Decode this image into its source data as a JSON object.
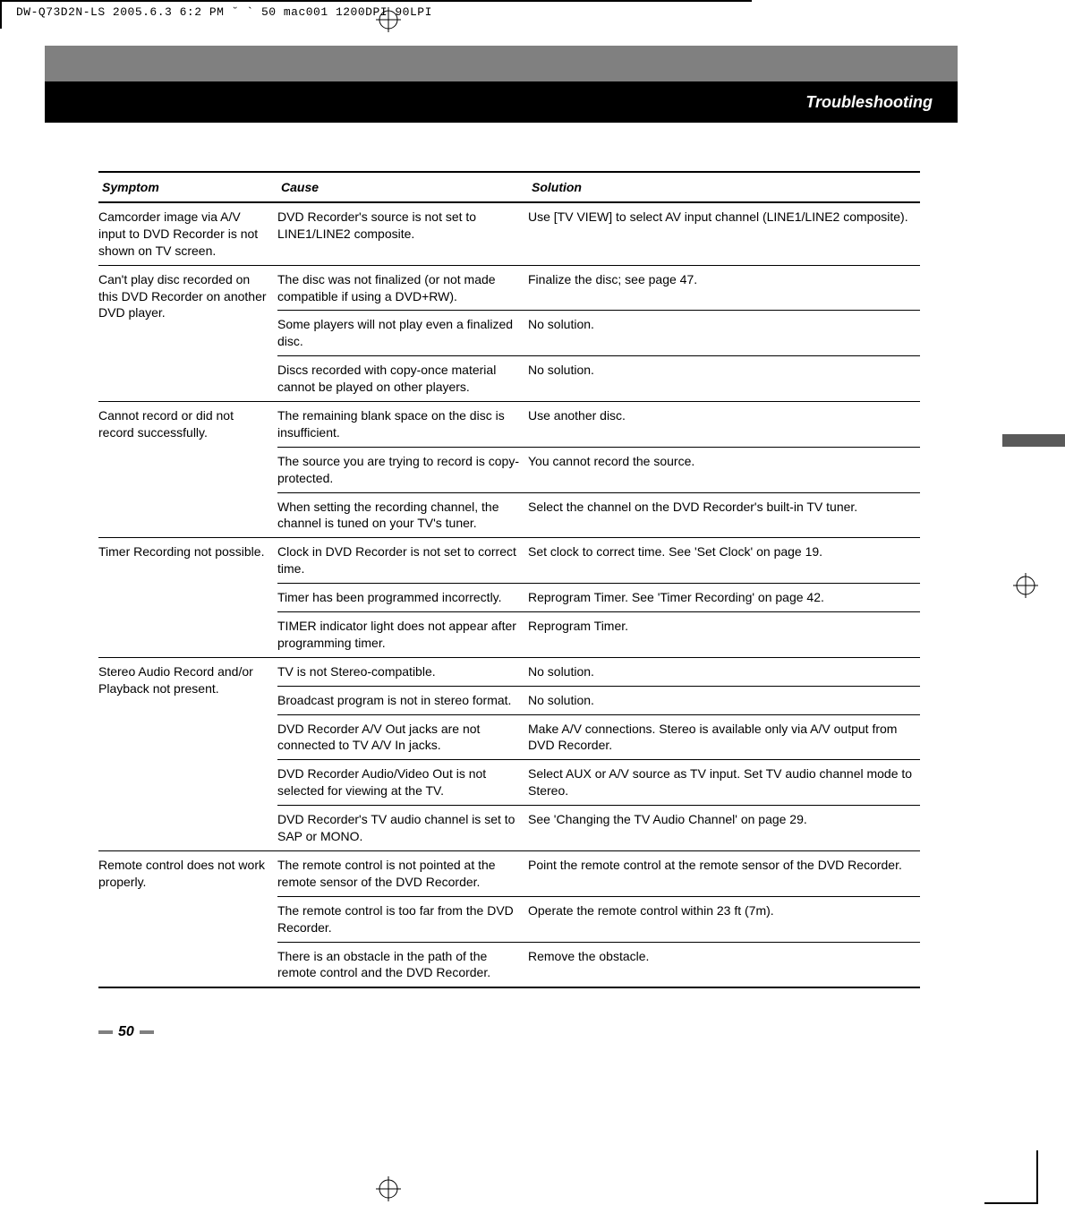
{
  "header_code": "DW-Q73D2N-LS  2005.6.3 6:2 PM  ˘  ` 50   mac001  1200DPI 90LPI",
  "section_title": "Troubleshooting",
  "columns": {
    "symptom": "Symptom",
    "cause": "Cause",
    "solution": "Solution"
  },
  "groups": [
    {
      "symptom": "Camcorder image via A/V input to DVD Recorder is not shown on TV screen.",
      "rows": [
        {
          "cause": "DVD Recorder's source is not set to LINE1/LINE2 composite.",
          "solution": "Use [TV VIEW] to select AV input channel (LINE1/LINE2 composite)."
        }
      ]
    },
    {
      "symptom": "Can't play disc recorded on this DVD Recorder on another DVD player.",
      "rows": [
        {
          "cause": "The disc was not finalized (or not made compatible if using a DVD+RW).",
          "solution": "Finalize the disc; see page 47."
        },
        {
          "cause": "Some players will not play even a finalized disc.",
          "solution": "No solution."
        },
        {
          "cause": "Discs recorded with copy-once material cannot be played on other players.",
          "solution": "No solution."
        }
      ]
    },
    {
      "symptom": "Cannot record or did not record successfully.",
      "rows": [
        {
          "cause": "The remaining blank space on the disc is insufficient.",
          "solution": "Use another disc."
        },
        {
          "cause": "The source you are trying to record is copy-protected.",
          "solution": "You cannot record the source."
        },
        {
          "cause": "When setting the recording channel, the channel is tuned on your TV's tuner.",
          "solution": "Select the channel on the DVD Recorder's built-in TV tuner."
        }
      ]
    },
    {
      "symptom": "Timer Recording not possible.",
      "rows": [
        {
          "cause": "Clock in DVD Recorder is not set to correct time.",
          "solution": "Set clock to correct time. See 'Set Clock' on page 19."
        },
        {
          "cause": "Timer has been programmed incorrectly.",
          "solution": "Reprogram Timer. See 'Timer Recording' on page 42."
        },
        {
          "cause": "TIMER indicator light does not appear after programming timer.",
          "solution": "Reprogram Timer."
        }
      ]
    },
    {
      "symptom": "Stereo Audio Record and/or Playback not present.",
      "rows": [
        {
          "cause": "TV is not Stereo-compatible.",
          "solution": "No solution."
        },
        {
          "cause": "Broadcast program is not in stereo format.",
          "solution": "No solution."
        },
        {
          "cause": "DVD Recorder A/V Out jacks are not connected to TV A/V In jacks.",
          "solution": "Make A/V connections. Stereo is available only via A/V output from DVD Recorder."
        },
        {
          "cause": "DVD Recorder Audio/Video Out is not selected for viewing at the TV.",
          "solution": "Select AUX or A/V source as TV input. Set TV audio channel mode to Stereo."
        },
        {
          "cause": "DVD Recorder's TV audio channel is set to SAP or MONO.",
          "solution": "See 'Changing the TV Audio Channel' on page 29."
        }
      ]
    },
    {
      "symptom": "Remote control does not work properly.",
      "rows": [
        {
          "cause": "The remote control is not pointed at the remote sensor of the DVD Recorder.",
          "solution": "Point the remote control at the remote sensor of the DVD Recorder."
        },
        {
          "cause": "The remote control is too far from the DVD Recorder.",
          "solution": "Operate the remote control within 23 ft (7m)."
        },
        {
          "cause": "There is an obstacle in the path of the remote control and the DVD Recorder.",
          "solution": "Remove the obstacle."
        }
      ]
    }
  ],
  "page_number": "50",
  "print_bar_color": "#5a5a5a"
}
